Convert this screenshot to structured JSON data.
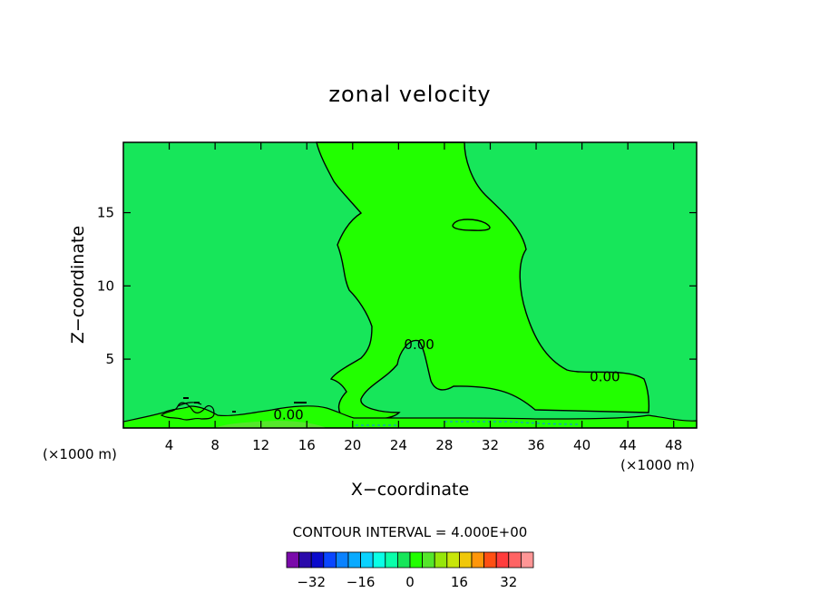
{
  "chart_data": {
    "type": "heatmap",
    "title": "zonal velocity",
    "xlabel": "X−coordinate",
    "ylabel": "Z−coordinate",
    "x_unit_label": "(×1000 m)",
    "y_unit_label": "(×1000 m)",
    "xlim": [
      0,
      50
    ],
    "ylim": [
      0.3,
      19.8
    ],
    "x_ticks": [
      4,
      8,
      12,
      16,
      20,
      24,
      28,
      32,
      36,
      40,
      44,
      48
    ],
    "y_ticks": [
      5,
      10,
      15
    ],
    "contour_interval_text": "CONTOUR INTERVAL = 4.000E+00",
    "contour_labels": [
      {
        "text": "0.00",
        "x": 14.4,
        "y": 1.2
      },
      {
        "text": "0.00",
        "x": 25.8,
        "y": 6.0
      },
      {
        "text": "0.00",
        "x": 42.0,
        "y": 3.8
      }
    ],
    "regions": [
      {
        "name": "background",
        "level": -2,
        "color": "#17e65a"
      },
      {
        "name": "positive plume",
        "level": 2,
        "color": "#22ff00"
      },
      {
        "name": "near-surface",
        "level": 2,
        "color": "#55e62b"
      }
    ],
    "colorbar": {
      "levels": [
        -36,
        -32,
        -28,
        -24,
        -20,
        -16,
        -12,
        -8,
        -4,
        0,
        4,
        8,
        12,
        16,
        20,
        24,
        28,
        32,
        36
      ],
      "tick_labels": [
        "−32",
        "−16",
        "0",
        "16",
        "32"
      ],
      "tick_values": [
        -32,
        -16,
        0,
        16,
        32
      ],
      "colors": [
        "#7a0aaa",
        "#2a0aaa",
        "#0a0acc",
        "#0a46ff",
        "#0a82ff",
        "#0aaaff",
        "#0ad2ff",
        "#0affe6",
        "#0affaa",
        "#17e65a",
        "#22ff00",
        "#55e62b",
        "#96e60a",
        "#c8e60a",
        "#f0c80a",
        "#ff960a",
        "#ff5014",
        "#ff3c3c",
        "#ff6464",
        "#ff9696"
      ]
    }
  }
}
